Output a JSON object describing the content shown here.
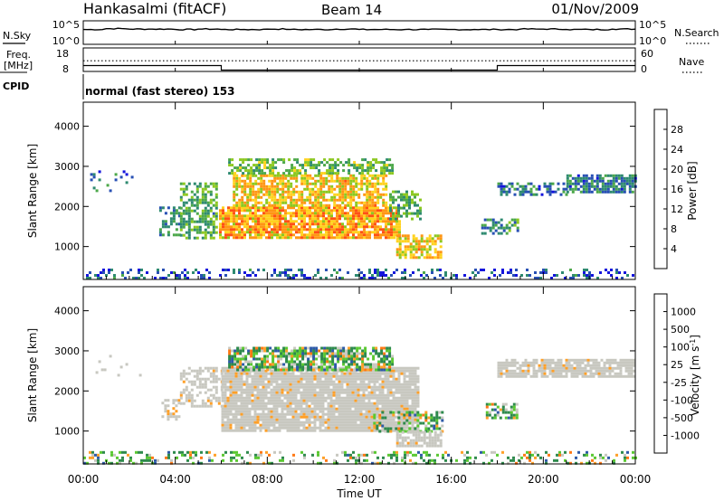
{
  "header": {
    "station": "Hankasalmi (fitACF)",
    "beam": "Beam 14",
    "date": "01/Nov/2009"
  },
  "noise_panel": {
    "left_label": "N.Sky",
    "right_label": "N.Search",
    "left_ticks": [
      "10^5",
      "10^0"
    ],
    "right_ticks": [
      "10^5",
      "10^0"
    ]
  },
  "freq_panel": {
    "left_label": "Freq.",
    "left_unit": "[MHz]",
    "right_label": "Nave",
    "left_ticks": [
      "18",
      "8"
    ],
    "right_ticks": [
      "60",
      "0"
    ]
  },
  "cpid": {
    "label": "CPID",
    "value": "normal (fast stereo) 153"
  },
  "x_axis": {
    "label": "Time UT",
    "ticks": [
      "00:00",
      "04:00",
      "08:00",
      "12:00",
      "16:00",
      "20:00",
      "00:00"
    ]
  },
  "colors": {
    "power_scale": [
      "#1414dc",
      "#2850b4",
      "#2e8a70",
      "#4ca84a",
      "#8cc820",
      "#ffd21e",
      "#ff9614",
      "#ff5014",
      "#e61414"
    ],
    "velocity_scale": [
      "#1428b4",
      "#2e5aa8",
      "#2e8a4c",
      "#5ac832",
      "#c8c8c0",
      "#ffa028",
      "#ff7814",
      "#ff3c14",
      "#e61414"
    ],
    "ground_scatter": "#c8c8c0"
  },
  "chart_data": [
    {
      "type": "line",
      "panel": "noise",
      "x": [
        0,
        1,
        2,
        3,
        4,
        5,
        6,
        7,
        8,
        9,
        10,
        11,
        12,
        13,
        14,
        15,
        16,
        17,
        18,
        19,
        20,
        21,
        22,
        23,
        24
      ],
      "series": [
        {
          "name": "N.Sky",
          "values": [
            3.2,
            3.4,
            3.3,
            3.3,
            3.2,
            3.3,
            3.2,
            3.2,
            3.3,
            3.2,
            3.2,
            3.3,
            3.2,
            3.2,
            3.2,
            3.2,
            3.2,
            3.2,
            3.2,
            3.3,
            3.3,
            3.2,
            3.2,
            3.3,
            3.3
          ]
        },
        {
          "name": "N.Search",
          "values": [
            0.3,
            0.3,
            0.3,
            0.3,
            0.3,
            0.3,
            0.3,
            0.3,
            0.3,
            0.3,
            0.3,
            0.3,
            0.3,
            0.3,
            0.3,
            0.3,
            0.3,
            0.3,
            0.3,
            0.3,
            0.3,
            0.3,
            0.3,
            0.3,
            0.3
          ]
        }
      ],
      "ylim": [
        0,
        5
      ]
    },
    {
      "type": "line",
      "panel": "frequency",
      "x": [
        0,
        6,
        6,
        18,
        18,
        24
      ],
      "series": [
        {
          "name": "Freq.",
          "values": [
            10.3,
            10.3,
            8.2,
            8.2,
            10.3,
            10.3
          ]
        },
        {
          "name": "Nave",
          "values": [
            27,
            27,
            27,
            27,
            27,
            27
          ]
        }
      ],
      "ylim": [
        8,
        18
      ],
      "y2lim": [
        0,
        60
      ]
    },
    {
      "type": "heatmap",
      "panel": "power",
      "xlabel": "",
      "ylabel": "Slant Range [km]",
      "xlim": [
        0,
        24
      ],
      "ylim": [
        180,
        4600
      ],
      "yticks": [
        1000,
        2000,
        3000,
        4000
      ],
      "colorbar": {
        "label": "Power [dB]",
        "range": [
          0,
          32
        ],
        "ticks": [
          4,
          8,
          12,
          16,
          20,
          24,
          28
        ]
      },
      "regions": [
        {
          "t": [
            0.3,
            2.5
          ],
          "r": [
            2400,
            2900
          ],
          "value": 7,
          "density": 0.1
        },
        {
          "t": [
            3.3,
            4.2
          ],
          "r": [
            1300,
            2000
          ],
          "value": 10,
          "density": 0.4
        },
        {
          "t": [
            4.2,
            5.8
          ],
          "r": [
            1200,
            2600
          ],
          "value": 12,
          "density": 0.6
        },
        {
          "t": [
            5.9,
            13.8
          ],
          "r": [
            1200,
            2000
          ],
          "value": 22,
          "density": 0.85
        },
        {
          "t": [
            6.5,
            13.2
          ],
          "r": [
            2000,
            2800
          ],
          "value": 20,
          "density": 0.7
        },
        {
          "t": [
            6.3,
            13.4
          ],
          "r": [
            2800,
            3200
          ],
          "value": 14,
          "density": 0.55
        },
        {
          "t": [
            13.3,
            14.6
          ],
          "r": [
            1700,
            2400
          ],
          "value": 12,
          "density": 0.5
        },
        {
          "t": [
            13.6,
            15.6
          ],
          "r": [
            700,
            1300
          ],
          "value": 20,
          "density": 0.7
        },
        {
          "t": [
            17.3,
            18.9
          ],
          "r": [
            1350,
            1700
          ],
          "value": 10,
          "density": 0.5
        },
        {
          "t": [
            18.0,
            21.0
          ],
          "r": [
            2300,
            2600
          ],
          "value": 8,
          "density": 0.45
        },
        {
          "t": [
            21.0,
            24.0
          ],
          "r": [
            2350,
            2800
          ],
          "value": 8,
          "density": 0.75
        },
        {
          "t": [
            0.0,
            24.0
          ],
          "r": [
            180,
            450
          ],
          "value": 6,
          "density": 0.3
        }
      ]
    },
    {
      "type": "heatmap",
      "panel": "velocity",
      "xlabel": "Time UT",
      "ylabel": "Slant Range [km]",
      "xlim": [
        0,
        24
      ],
      "ylim": [
        180,
        4600
      ],
      "yticks": [
        1000,
        2000,
        3000,
        4000
      ],
      "colorbar": {
        "label": "Velocity [m s-1]",
        "range": [
          -1200,
          1200
        ],
        "ticks": [
          1000,
          500,
          100,
          25,
          -25,
          -100,
          -500,
          -1000
        ]
      },
      "regions": [
        {
          "t": [
            0.3,
            2.5
          ],
          "r": [
            2400,
            2900
          ],
          "value": 0,
          "density": 0.1,
          "ground": true
        },
        {
          "t": [
            3.4,
            4.2
          ],
          "r": [
            1300,
            1800
          ],
          "value": 0,
          "density": 0.5,
          "ground": true
        },
        {
          "t": [
            4.2,
            6.0
          ],
          "r": [
            1600,
            2600
          ],
          "value": 0,
          "density": 0.55,
          "ground": true
        },
        {
          "t": [
            6.0,
            14.5
          ],
          "r": [
            1000,
            2600
          ],
          "value": 0,
          "density": 0.9,
          "ground": true
        },
        {
          "t": [
            6.3,
            13.4
          ],
          "r": [
            2500,
            3100
          ],
          "value": 100,
          "density": 0.75
        },
        {
          "t": [
            12.6,
            15.6
          ],
          "r": [
            1000,
            1500
          ],
          "value": 200,
          "density": 0.5
        },
        {
          "t": [
            13.6,
            15.5
          ],
          "r": [
            600,
            1000
          ],
          "value": 0,
          "density": 0.8,
          "ground": true
        },
        {
          "t": [
            17.5,
            18.9
          ],
          "r": [
            1350,
            1700
          ],
          "value": 150,
          "density": 0.6
        },
        {
          "t": [
            18.0,
            24.0
          ],
          "r": [
            2350,
            2800
          ],
          "value": 0,
          "density": 0.8,
          "ground": true
        },
        {
          "t": [
            0.0,
            24.0
          ],
          "r": [
            180,
            500
          ],
          "value": 50,
          "density": 0.3
        }
      ]
    }
  ]
}
